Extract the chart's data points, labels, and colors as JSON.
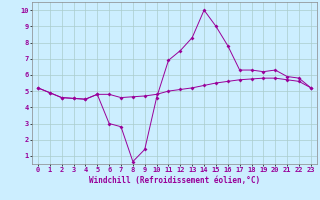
{
  "xlabel": "Windchill (Refroidissement éolien,°C)",
  "bg_color": "#cceeff",
  "line_color": "#990099",
  "grid_color": "#aacccc",
  "xlim": [
    -0.5,
    23.5
  ],
  "ylim": [
    0.5,
    10.5
  ],
  "xticks": [
    0,
    1,
    2,
    3,
    4,
    5,
    6,
    7,
    8,
    9,
    10,
    11,
    12,
    13,
    14,
    15,
    16,
    17,
    18,
    19,
    20,
    21,
    22,
    23
  ],
  "yticks": [
    1,
    2,
    3,
    4,
    5,
    6,
    7,
    8,
    9,
    10
  ],
  "line1_x": [
    0,
    1,
    2,
    3,
    4,
    5,
    6,
    7,
    8,
    9,
    10,
    11,
    12,
    13,
    14,
    15,
    16,
    17,
    18,
    19,
    20,
    21,
    22,
    23
  ],
  "line1_y": [
    5.2,
    4.9,
    4.6,
    4.55,
    4.5,
    4.8,
    4.8,
    4.6,
    4.65,
    4.7,
    4.8,
    5.0,
    5.1,
    5.2,
    5.35,
    5.5,
    5.6,
    5.7,
    5.75,
    5.8,
    5.8,
    5.7,
    5.6,
    5.2
  ],
  "line2_x": [
    0,
    1,
    2,
    3,
    4,
    5,
    6,
    7,
    8,
    9,
    10,
    11,
    12,
    13,
    14,
    15,
    16,
    17,
    18,
    19,
    20,
    21,
    22,
    23
  ],
  "line2_y": [
    5.2,
    4.9,
    4.6,
    4.55,
    4.5,
    4.8,
    3.0,
    2.8,
    0.65,
    1.4,
    4.6,
    6.9,
    7.5,
    8.3,
    10.0,
    9.0,
    7.8,
    6.3,
    6.3,
    6.2,
    6.3,
    5.9,
    5.8,
    5.2
  ],
  "xlabel_fontsize": 5.5,
  "tick_fontsize": 5.0
}
